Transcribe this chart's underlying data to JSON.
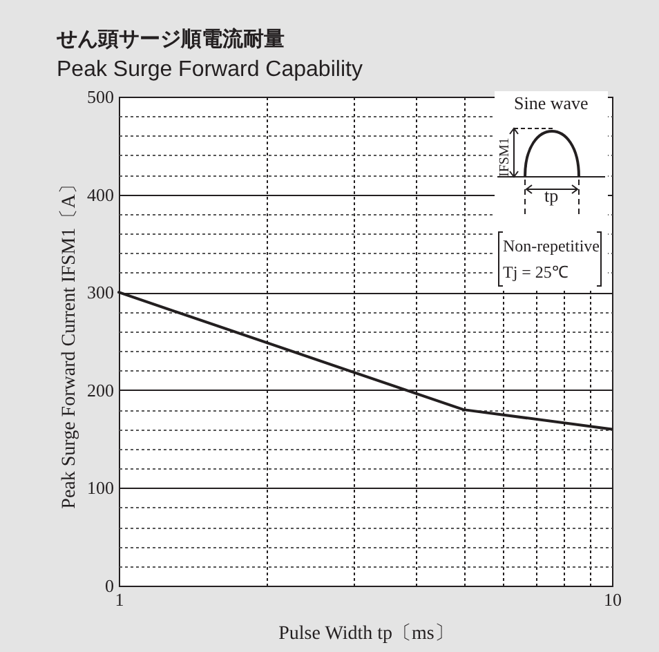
{
  "chart_data": {
    "type": "line",
    "title": "せん頭サージ順電流耐量",
    "subtitle": "Peak Surge Forward Capability",
    "xlabel": "Pulse Width  tp〔ms〕",
    "ylabel": "Peak Surge Forward Current IFSM1〔A〕",
    "log": "x",
    "xlim": [
      1,
      10
    ],
    "xticks": [
      1,
      {
        "value": 2,
        "label": null
      },
      {
        "value": 3,
        "label": null
      },
      {
        "value": 4,
        "label": null
      },
      {
        "value": 5,
        "label": null
      },
      {
        "value": 6,
        "label": null
      },
      {
        "value": 7,
        "label": null
      },
      {
        "value": 8,
        "label": null
      },
      {
        "value": 9,
        "label": null
      },
      10
    ],
    "ylim": [
      0,
      500
    ],
    "yticks": [
      0,
      {
        "value": 20,
        "label": null
      },
      {
        "value": 40,
        "label": null
      },
      {
        "value": 60,
        "label": null
      },
      {
        "value": 80,
        "label": null
      },
      100,
      {
        "value": 120,
        "label": null
      },
      {
        "value": 140,
        "label": null
      },
      {
        "value": 160,
        "label": null
      },
      {
        "value": 180,
        "label": null
      },
      200,
      {
        "value": 220,
        "label": null
      },
      {
        "value": 240,
        "label": null
      },
      {
        "value": 260,
        "label": null
      },
      {
        "value": 280,
        "label": null
      },
      300,
      {
        "value": 320,
        "label": null
      },
      {
        "value": 340,
        "label": null
      },
      {
        "value": 360,
        "label": null
      },
      {
        "value": 380,
        "label": null
      },
      400,
      {
        "value": 420,
        "label": null
      },
      {
        "value": 440,
        "label": null
      },
      {
        "value": 460,
        "label": null
      },
      {
        "value": 480,
        "label": null
      },
      500
    ],
    "grid": true,
    "marker": "none",
    "line_style": "solid",
    "x": [
      1,
      5,
      10
    ],
    "series": [
      {
        "color": "#231f20",
        "values": [
          300,
          180,
          160
        ]
      }
    ],
    "annotations": [
      "Sine wave",
      "IFSM1",
      "tp",
      "Non-repetitive",
      "Tj = 25℃"
    ]
  }
}
